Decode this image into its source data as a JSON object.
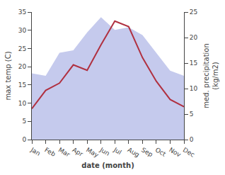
{
  "chart_data": {
    "type": "line",
    "categories": [
      "Jan",
      "Feb",
      "Mar",
      "Apr",
      "May",
      "Jun",
      "Jul",
      "Aug",
      "Sep",
      "Oct",
      "Nov",
      "Dec"
    ],
    "series": [
      {
        "type": "area",
        "axis": "y2",
        "color": "#c5caed",
        "values": [
          13.0,
          12.5,
          17.0,
          17.5,
          21.0,
          24.0,
          21.5,
          22.0,
          20.5,
          17.0,
          13.5,
          12.5
        ]
      },
      {
        "type": "line",
        "color": "#b03040",
        "values": [
          8.5,
          13.5,
          15.5,
          20.5,
          19.0,
          26.0,
          32.5,
          31.0,
          22.5,
          16.0,
          11.0,
          9.0
        ]
      }
    ],
    "xlabel": "date (month)",
    "ylabel": "max temp (C)",
    "y2label": "med. precipitation\n(kg/m2)",
    "ylim": [
      0,
      35
    ],
    "yticks": [
      0,
      5,
      10,
      15,
      20,
      25,
      30,
      35
    ],
    "y2lim": [
      0,
      25
    ],
    "y2ticks": [
      0,
      5,
      10,
      15,
      20,
      25
    ],
    "grid": false
  }
}
